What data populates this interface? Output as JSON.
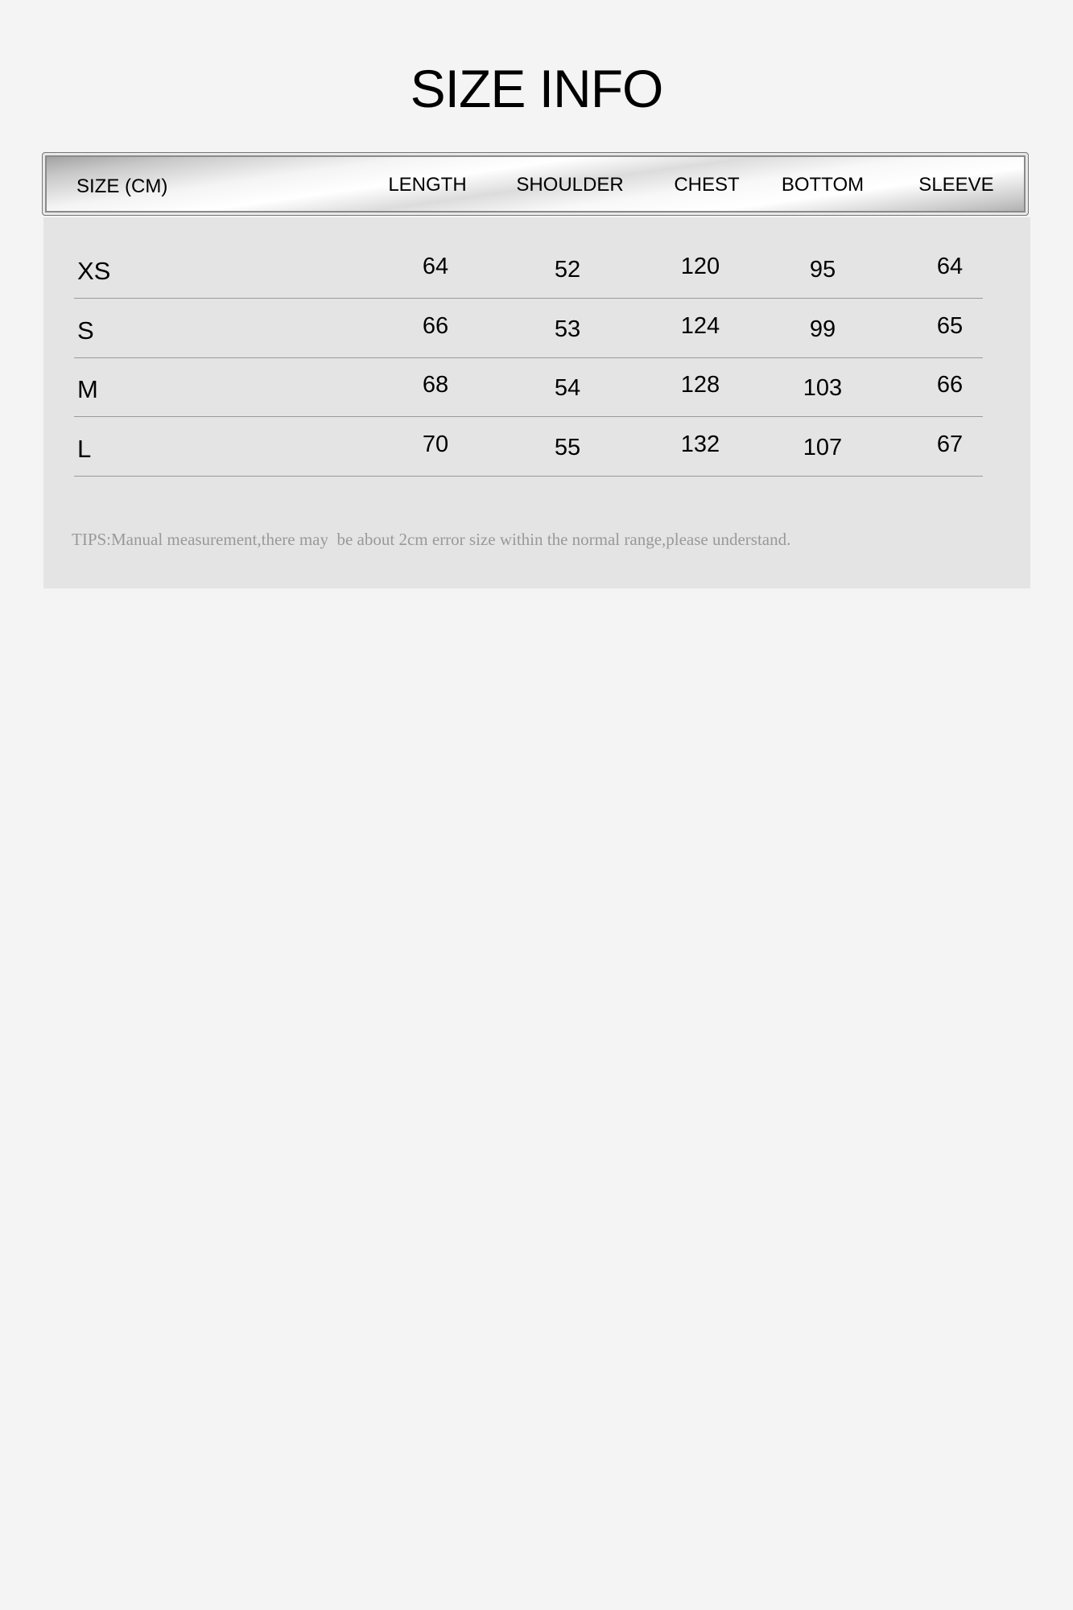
{
  "title": "SIZE INFO",
  "table": {
    "headers": [
      "SIZE (CM)",
      "LENGTH",
      "SHOULDER",
      "CHEST",
      "BOTTOM",
      "SLEEVE"
    ],
    "rows": [
      [
        "XS",
        "64",
        "52",
        "120",
        "95",
        "64"
      ],
      [
        "S",
        "66",
        "53",
        "124",
        "99",
        "65"
      ],
      [
        "M",
        "68",
        "54",
        "128",
        "103",
        "66"
      ],
      [
        "L",
        "70",
        "55",
        "132",
        "107",
        "67"
      ]
    ]
  },
  "tips": "TIPS:Manual measurement,there may  be about 2cm error size within the normal range,please understand.",
  "colors": {
    "background": "#f4f4f4",
    "panel": "#e4e4e4",
    "tips_text": "#999999"
  }
}
